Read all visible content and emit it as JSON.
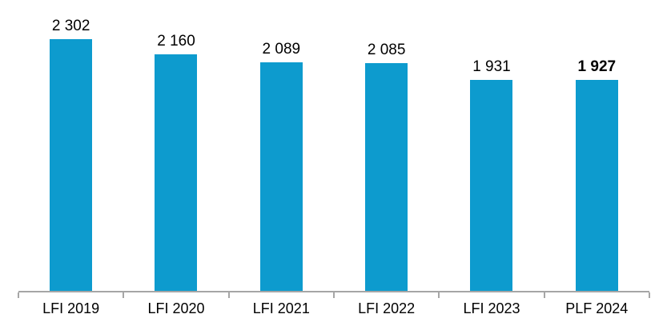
{
  "chart_data": {
    "type": "bar",
    "title": "",
    "xlabel": "",
    "ylabel": "",
    "categories": [
      "LFI 2019",
      "LFI 2020",
      "LFI 2021",
      "LFI 2022",
      "LFI 2023",
      "PLF 2024"
    ],
    "values": [
      2302,
      2160,
      2089,
      2085,
      1931,
      1927
    ],
    "value_labels": [
      "2 302",
      "2 160",
      "2 089",
      "2 085",
      "1 931",
      "1 927"
    ],
    "value_label_bold": [
      false,
      false,
      false,
      false,
      false,
      true
    ],
    "ylim": [
      0,
      2302
    ],
    "grid": false,
    "legend": "none",
    "bar_color": "#0d9bce",
    "axis_color": "#a6a6a6",
    "label_color": "#000000"
  }
}
